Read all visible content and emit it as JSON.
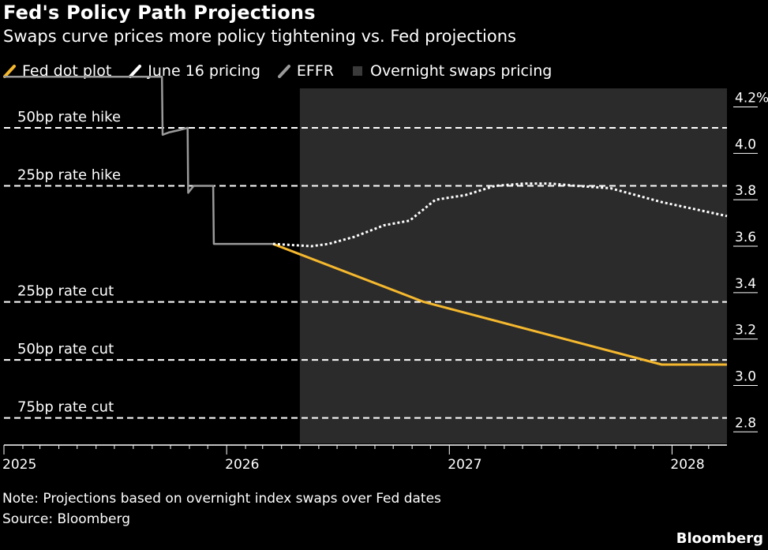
{
  "header": {
    "title": "Fed's Policy Path Projections",
    "subtitle": "Swaps curve prices more policy tightening vs. Fed projections"
  },
  "legend": [
    {
      "label": "Fed dot plot",
      "color": "#f5b82e",
      "marker": "slash"
    },
    {
      "label": "June 16 pricing",
      "color": "#ffffff",
      "marker": "slash"
    },
    {
      "label": "EFFR",
      "color": "#9a9a9a",
      "marker": "slash"
    },
    {
      "label": "Overnight swaps pricing",
      "color": "#2b2b2b",
      "marker": "square"
    }
  ],
  "footer": {
    "note": "Note: Projections based on overnight index swaps over Fed dates",
    "source": "Source: Bloomberg",
    "brand": "Bloomberg"
  },
  "chart_data": {
    "type": "line",
    "x_ticks": [
      "2025",
      "2026",
      "2027",
      "2028"
    ],
    "y_ticks": [
      4.2,
      4.0,
      3.8,
      3.6,
      3.4,
      3.2,
      3.0,
      2.8
    ],
    "y_tick_labels": [
      "4.2%",
      "4.0",
      "3.8",
      "3.6",
      "3.4",
      "3.2",
      "3.0",
      "2.8"
    ],
    "ylim": [
      2.75,
      4.28
    ],
    "xlim": [
      "2025-01-01",
      "2028-03-31"
    ],
    "shaded_region": {
      "label": "Overnight swaps pricing",
      "x_start": "2026-05-01",
      "x_end": "2028-03-31",
      "color": "#2b2b2b"
    },
    "reference_lines": [
      {
        "label": "50bp rate hike",
        "y": 4.11
      },
      {
        "label": "25bp rate hike",
        "y": 3.86
      },
      {
        "label": "25bp rate cut",
        "y": 3.36
      },
      {
        "label": "50bp rate cut",
        "y": 3.11
      },
      {
        "label": "75bp rate cut",
        "y": 2.86
      }
    ],
    "series": [
      {
        "name": "EFFR",
        "color": "#9a9a9a",
        "points": [
          [
            "2025-01-01",
            4.33
          ],
          [
            "2025-09-17",
            4.33
          ],
          [
            "2025-09-18",
            4.08
          ],
          [
            "2025-09-28",
            4.09
          ],
          [
            "2025-10-15",
            4.1
          ],
          [
            "2025-10-29",
            4.11
          ],
          [
            "2025-10-30",
            3.83
          ],
          [
            "2025-11-08",
            3.86
          ],
          [
            "2025-11-25",
            3.86
          ],
          [
            "2025-12-10",
            3.86
          ],
          [
            "2025-12-11",
            3.61
          ],
          [
            "2026-03-18",
            3.61
          ]
        ]
      },
      {
        "name": "Fed dot plot",
        "color": "#f5b82e",
        "points": [
          [
            "2026-03-18",
            3.61
          ],
          [
            "2026-11-20",
            3.36
          ],
          [
            "2027-12-15",
            3.09
          ],
          [
            "2028-03-31",
            3.09
          ]
        ]
      },
      {
        "name": "June 16 pricing",
        "color": "#ffffff",
        "points": [
          [
            "2026-03-18",
            3.61
          ],
          [
            "2026-05-20",
            3.6
          ],
          [
            "2026-06-17",
            3.61
          ],
          [
            "2026-07-29",
            3.64
          ],
          [
            "2026-09-16",
            3.69
          ],
          [
            "2026-10-28",
            3.71
          ],
          [
            "2026-12-09",
            3.8
          ],
          [
            "2027-01-27",
            3.82
          ],
          [
            "2027-03-17",
            3.86
          ],
          [
            "2027-05-05",
            3.87
          ],
          [
            "2027-06-16",
            3.87
          ],
          [
            "2027-07-28",
            3.86
          ],
          [
            "2027-09-22",
            3.85
          ],
          [
            "2027-11-03",
            3.82
          ],
          [
            "2027-12-15",
            3.79
          ],
          [
            "2028-03-31",
            3.73
          ]
        ]
      }
    ]
  }
}
